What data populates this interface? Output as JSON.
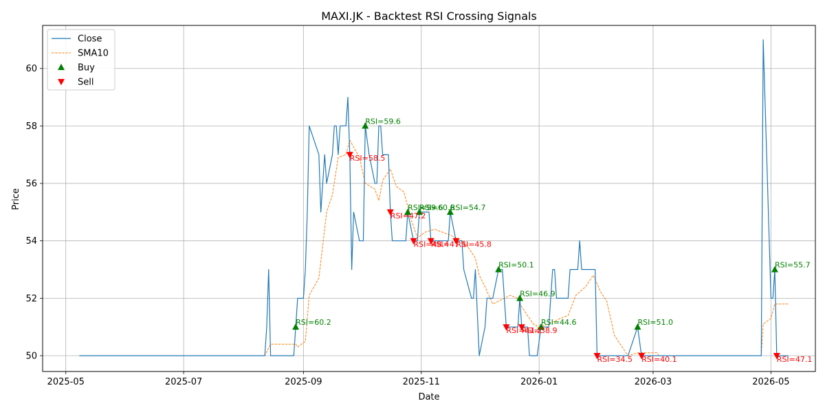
{
  "chart_data": {
    "type": "line",
    "title": "MAXI.JK - Backtest RSI Crossing Signals",
    "xlabel": "Date",
    "ylabel": "Price",
    "x_range": [
      "2025-04-19",
      "2026-05-24"
    ],
    "ylim": [
      49.45,
      61.5
    ],
    "grid": true,
    "legend_position": "top-left",
    "x_ticks": [
      "2025-05-01",
      "2025-07-01",
      "2025-09-01",
      "2025-11-01",
      "2026-01-01",
      "2026-03-01",
      "2026-05-01"
    ],
    "x_tick_labels": [
      "2025-05",
      "2025-07",
      "2025-09",
      "2025-11",
      "2026-01",
      "2026-03",
      "2026-05"
    ],
    "y_ticks": [
      50,
      52,
      54,
      56,
      58,
      60
    ],
    "colors": {
      "close": "#1f77b4",
      "sma": "#ff7f0e",
      "buy": "#008000",
      "sell": "#ff0000",
      "grid": "#b0b0b0"
    },
    "legend": [
      {
        "label": "Close",
        "kind": "line",
        "color": "#1f77b4"
      },
      {
        "label": "SMA10",
        "kind": "dashed",
        "color": "#ff7f0e"
      },
      {
        "label": "Buy",
        "kind": "up",
        "color": "#008000"
      },
      {
        "label": "Sell",
        "kind": "down",
        "color": "#ff0000"
      }
    ],
    "series": [
      {
        "name": "Close",
        "points": [
          [
            "2025-05-08",
            50
          ],
          [
            "2025-08-12",
            50
          ],
          [
            "2025-08-13",
            51
          ],
          [
            "2025-08-14",
            53
          ],
          [
            "2025-08-15",
            50
          ],
          [
            "2025-08-27",
            50
          ],
          [
            "2025-08-29",
            52
          ],
          [
            "2025-09-01",
            52
          ],
          [
            "2025-09-02",
            53
          ],
          [
            "2025-09-03",
            55
          ],
          [
            "2025-09-04",
            58
          ],
          [
            "2025-09-09",
            57
          ],
          [
            "2025-09-10",
            55
          ],
          [
            "2025-09-12",
            57
          ],
          [
            "2025-09-13",
            56
          ],
          [
            "2025-09-16",
            57
          ],
          [
            "2025-09-17",
            58
          ],
          [
            "2025-09-18",
            58
          ],
          [
            "2025-09-19",
            57
          ],
          [
            "2025-09-20",
            58
          ],
          [
            "2025-09-23",
            58
          ],
          [
            "2025-09-24",
            59
          ],
          [
            "2025-09-25",
            57
          ],
          [
            "2025-09-26",
            53
          ],
          [
            "2025-09-27",
            55
          ],
          [
            "2025-09-30",
            54
          ],
          [
            "2025-10-02",
            54
          ],
          [
            "2025-10-03",
            58
          ],
          [
            "2025-10-05",
            57
          ],
          [
            "2025-10-08",
            56
          ],
          [
            "2025-10-09",
            56
          ],
          [
            "2025-10-10",
            58
          ],
          [
            "2025-10-11",
            58
          ],
          [
            "2025-10-12",
            57
          ],
          [
            "2025-10-15",
            57
          ],
          [
            "2025-10-16",
            55
          ],
          [
            "2025-10-17",
            54
          ],
          [
            "2025-10-24",
            54
          ],
          [
            "2025-10-25",
            55
          ],
          [
            "2025-10-28",
            54
          ],
          [
            "2025-10-30",
            54
          ],
          [
            "2025-10-31",
            55
          ],
          [
            "2025-11-05",
            55
          ],
          [
            "2025-11-06",
            54
          ],
          [
            "2025-11-15",
            54
          ],
          [
            "2025-11-16",
            55
          ],
          [
            "2025-11-19",
            54
          ],
          [
            "2025-11-22",
            54
          ],
          [
            "2025-11-23",
            53
          ],
          [
            "2025-11-27",
            52
          ],
          [
            "2025-11-28",
            52
          ],
          [
            "2025-11-29",
            53
          ],
          [
            "2025-12-01",
            50
          ],
          [
            "2025-12-04",
            51
          ],
          [
            "2025-12-05",
            52
          ],
          [
            "2025-12-08",
            52
          ],
          [
            "2025-12-11",
            53
          ],
          [
            "2025-12-13",
            53
          ],
          [
            "2025-12-15",
            51
          ],
          [
            "2025-12-21",
            51
          ],
          [
            "2025-12-22",
            52
          ],
          [
            "2025-12-23",
            51
          ],
          [
            "2025-12-26",
            51
          ],
          [
            "2025-12-27",
            50
          ],
          [
            "2025-12-31",
            50
          ],
          [
            "2026-01-02",
            51
          ],
          [
            "2026-01-06",
            51
          ],
          [
            "2026-01-08",
            53
          ],
          [
            "2026-01-09",
            53
          ],
          [
            "2026-01-10",
            52
          ],
          [
            "2026-01-16",
            52
          ],
          [
            "2026-01-17",
            53
          ],
          [
            "2026-01-21",
            53
          ],
          [
            "2026-01-22",
            54
          ],
          [
            "2026-01-23",
            53
          ],
          [
            "2026-01-30",
            53
          ],
          [
            "2026-01-31",
            50
          ],
          [
            "2026-02-16",
            50
          ],
          [
            "2026-02-21",
            51
          ],
          [
            "2026-02-23",
            50
          ],
          [
            "2026-04-26",
            50
          ],
          [
            "2026-04-27",
            61
          ],
          [
            "2026-05-01",
            52
          ],
          [
            "2026-05-02",
            52
          ],
          [
            "2026-05-03",
            53
          ],
          [
            "2026-05-04",
            50
          ],
          [
            "2026-05-10",
            50
          ]
        ]
      },
      {
        "name": "SMA10",
        "points": [
          [
            "2025-05-22",
            50
          ],
          [
            "2025-08-12",
            50
          ],
          [
            "2025-08-15",
            50.4
          ],
          [
            "2025-08-28",
            50.4
          ],
          [
            "2025-08-29",
            50.3
          ],
          [
            "2025-09-02",
            50.5
          ],
          [
            "2025-09-04",
            52.1
          ],
          [
            "2025-09-09",
            52.7
          ],
          [
            "2025-09-13",
            55.0
          ],
          [
            "2025-09-16",
            55.6
          ],
          [
            "2025-09-19",
            56.9
          ],
          [
            "2025-09-23",
            57.0
          ],
          [
            "2025-09-25",
            57.5
          ],
          [
            "2025-09-30",
            56.9
          ],
          [
            "2025-10-03",
            56.0
          ],
          [
            "2025-10-08",
            55.8
          ],
          [
            "2025-10-10",
            55.4
          ],
          [
            "2025-10-12",
            56.1
          ],
          [
            "2025-10-16",
            56.5
          ],
          [
            "2025-10-19",
            55.9
          ],
          [
            "2025-10-23",
            55.7
          ],
          [
            "2025-10-27",
            54.7
          ],
          [
            "2025-10-30",
            54.1
          ],
          [
            "2025-11-03",
            54.3
          ],
          [
            "2025-11-08",
            54.4
          ],
          [
            "2025-11-12",
            54.3
          ],
          [
            "2025-11-16",
            54.2
          ],
          [
            "2025-11-22",
            54.0
          ],
          [
            "2025-11-25",
            53.8
          ],
          [
            "2025-11-29",
            53.4
          ],
          [
            "2025-12-01",
            52.8
          ],
          [
            "2025-12-04",
            52.4
          ],
          [
            "2025-12-08",
            51.8
          ],
          [
            "2025-12-11",
            51.9
          ],
          [
            "2025-12-17",
            52.1
          ],
          [
            "2025-12-21",
            52.0
          ],
          [
            "2025-12-23",
            51.7
          ],
          [
            "2025-12-29",
            51.1
          ],
          [
            "2026-01-01",
            51.0
          ],
          [
            "2026-01-06",
            51.1
          ],
          [
            "2026-01-12",
            51.3
          ],
          [
            "2026-01-16",
            51.4
          ],
          [
            "2026-01-20",
            52.1
          ],
          [
            "2026-01-25",
            52.4
          ],
          [
            "2026-01-29",
            52.8
          ],
          [
            "2026-02-02",
            52.2
          ],
          [
            "2026-02-05",
            51.9
          ],
          [
            "2026-02-09",
            50.7
          ],
          [
            "2026-02-13",
            50.3
          ],
          [
            "2026-02-16",
            50.0
          ],
          [
            "2026-02-21",
            50.1
          ],
          [
            "2026-03-03",
            50.1
          ],
          [
            "2026-03-04",
            50.0
          ],
          [
            "2026-04-26",
            50.0
          ],
          [
            "2026-04-27",
            51.1
          ],
          [
            "2026-05-01",
            51.3
          ],
          [
            "2026-05-03",
            51.8
          ],
          [
            "2026-05-10",
            51.8
          ]
        ]
      }
    ],
    "buy_signals": [
      {
        "date": "2025-08-28",
        "price": 51,
        "label": "RSI=60.2"
      },
      {
        "date": "2025-10-03",
        "price": 58,
        "label": "RSI=59.6"
      },
      {
        "date": "2025-10-25",
        "price": 55,
        "label": "RSI=59.6"
      },
      {
        "date": "2025-10-31",
        "price": 55,
        "label": "RSI=60.6"
      },
      {
        "date": "2025-11-16",
        "price": 55,
        "label": "RSI=54.7"
      },
      {
        "date": "2025-12-11",
        "price": 53,
        "label": "RSI=50.1"
      },
      {
        "date": "2025-12-22",
        "price": 52,
        "label": "RSI=46.9"
      },
      {
        "date": "2026-01-02",
        "price": 51,
        "label": "RSI=44.6"
      },
      {
        "date": "2026-02-21",
        "price": 51,
        "label": "RSI=51.0"
      },
      {
        "date": "2026-05-03",
        "price": 53,
        "label": "RSI=55.7"
      }
    ],
    "sell_signals": [
      {
        "date": "2025-09-25",
        "price": 57,
        "label": "RSI=58.5"
      },
      {
        "date": "2025-10-16",
        "price": 55,
        "label": "RSI=47.2"
      },
      {
        "date": "2025-10-28",
        "price": 54,
        "label": "RSI=48.4"
      },
      {
        "date": "2025-11-06",
        "price": 54,
        "label": "RSI=47.1"
      },
      {
        "date": "2025-11-19",
        "price": 54,
        "label": "RSI=45.8"
      },
      {
        "date": "2025-12-15",
        "price": 51,
        "label": "RSI=41.2"
      },
      {
        "date": "2025-12-23",
        "price": 51,
        "label": "RSI=38.9"
      },
      {
        "date": "2026-01-31",
        "price": 50,
        "label": "RSI=34.5"
      },
      {
        "date": "2026-02-23",
        "price": 50,
        "label": "RSI=40.1"
      },
      {
        "date": "2026-05-04",
        "price": 50,
        "label": "RSI=47.1"
      }
    ]
  }
}
